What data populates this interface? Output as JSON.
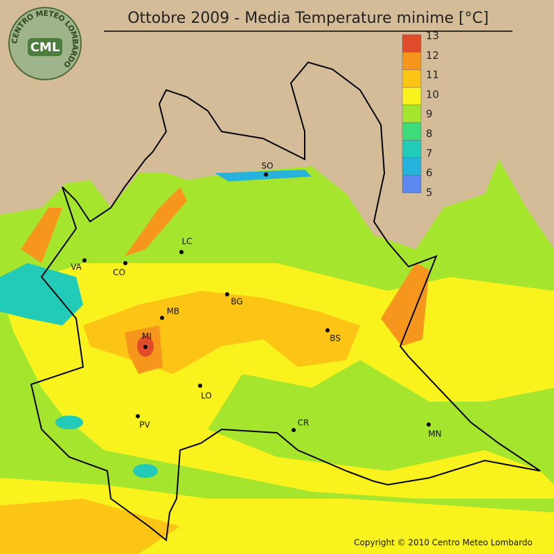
{
  "title": "Ottobre 2009 - Media Temperature minime [°C]",
  "logo": {
    "abbr": "CML",
    "name": "CENTRO METEO LOMBARDO"
  },
  "legend": [
    {
      "value": 13,
      "color": "#e04b2a"
    },
    {
      "value": 12,
      "color": "#f7961c"
    },
    {
      "value": 11,
      "color": "#fcc414"
    },
    {
      "value": 10,
      "color": "#f9f21c"
    },
    {
      "value": 9,
      "color": "#a6e52e"
    },
    {
      "value": 8,
      "color": "#3edc78"
    },
    {
      "value": 7,
      "color": "#22cbb8"
    },
    {
      "value": 6,
      "color": "#26b2da"
    },
    {
      "value": 5,
      "color": "#5a88f0"
    }
  ],
  "cities": [
    "SO",
    "VA",
    "CO",
    "LC",
    "BG",
    "MB",
    "MI",
    "BS",
    "LO",
    "PV",
    "CR",
    "MN"
  ],
  "copyright": "Copyright © 2010 Centro Meteo Lombardo"
}
